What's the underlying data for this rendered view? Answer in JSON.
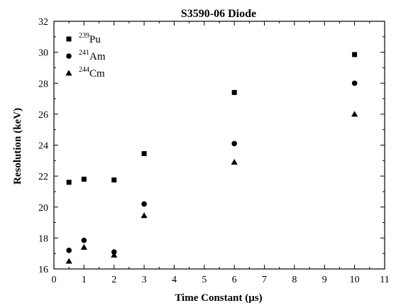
{
  "chart_data": {
    "type": "scatter",
    "title": "S3590-06 Diode",
    "xlabel": "Time Constant (µs)",
    "ylabel": "Resolution (keV)",
    "xlim": [
      0,
      11
    ],
    "ylim": [
      16,
      32
    ],
    "x_ticks": [
      "0",
      "1",
      "2",
      "3",
      "4",
      "5",
      "6",
      "7",
      "8",
      "9",
      "10",
      "11"
    ],
    "y_ticks": [
      "16",
      "18",
      "20",
      "22",
      "24",
      "26",
      "28",
      "30",
      "32"
    ],
    "grid": false,
    "legend_position": "top-left",
    "series": [
      {
        "name": "239Pu",
        "mass": "239",
        "element": "Pu",
        "marker": "square",
        "x": [
          0.5,
          1,
          2,
          3,
          6,
          10
        ],
        "y": [
          21.6,
          21.8,
          21.75,
          23.45,
          27.4,
          29.85
        ]
      },
      {
        "name": "241Am",
        "mass": "241",
        "element": "Am",
        "marker": "circle",
        "x": [
          0.5,
          1,
          2,
          3,
          6,
          10
        ],
        "y": [
          17.2,
          17.85,
          17.1,
          20.2,
          24.1,
          28.0
        ]
      },
      {
        "name": "244Cm",
        "mass": "244",
        "element": "Cm",
        "marker": "triangle",
        "x": [
          0.5,
          1,
          2,
          3,
          6,
          10
        ],
        "y": [
          16.5,
          17.4,
          16.9,
          19.45,
          22.9,
          26.0
        ]
      }
    ]
  }
}
